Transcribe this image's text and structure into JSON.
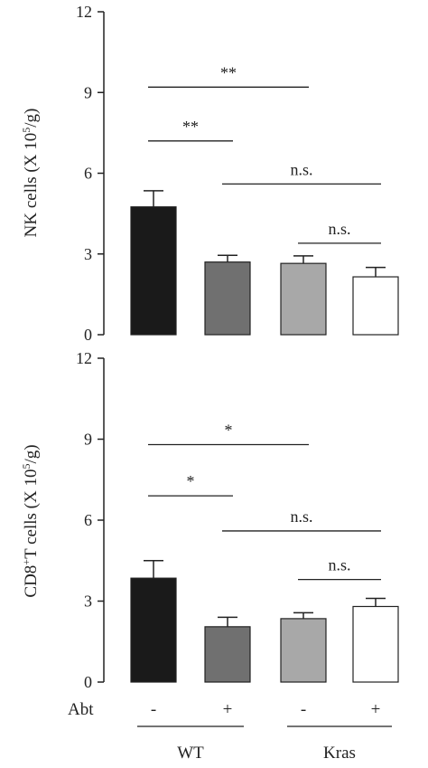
{
  "colors": {
    "axis": "#222222",
    "bars": [
      "#1a1a1a",
      "#707070",
      "#a8a8a8",
      "#ffffff"
    ],
    "bar_stroke": "#222222"
  },
  "chart_data": [
    {
      "type": "bar",
      "ylabel": "NK cells (X 10^5/g)",
      "ylabel_parts": {
        "prefix": "NK cells (X 10",
        "sup": "5",
        "suffix": "/g)"
      },
      "ylim": [
        0,
        12
      ],
      "yticks": [
        "0",
        "3",
        "6",
        "9",
        "12"
      ],
      "values": [
        4.75,
        2.7,
        2.65,
        2.15
      ],
      "errors": [
        0.6,
        0.25,
        0.28,
        0.35
      ],
      "significance": [
        {
          "from": 0,
          "to": 2,
          "label": "**",
          "level": 9.2
        },
        {
          "from": 0,
          "to": 1,
          "label": "**",
          "level": 7.2
        },
        {
          "from": 1,
          "to": 3,
          "label": "n.s.",
          "level": 5.6
        },
        {
          "from": 2,
          "to": 3,
          "label": "n.s.",
          "level": 3.4
        }
      ]
    },
    {
      "type": "bar",
      "ylabel": "CD8+T cells (X 10^5/g)",
      "ylabel_parts": {
        "prefix": "CD8",
        "sup1": "+",
        "mid": "T cells (X 10",
        "sup": "5",
        "suffix": "/g)"
      },
      "ylim": [
        0,
        12
      ],
      "yticks": [
        "0",
        "3",
        "6",
        "9",
        "12"
      ],
      "values": [
        3.85,
        2.05,
        2.35,
        2.8
      ],
      "errors": [
        0.65,
        0.35,
        0.22,
        0.3
      ],
      "significance": [
        {
          "from": 0,
          "to": 2,
          "label": "*",
          "level": 8.8
        },
        {
          "from": 0,
          "to": 1,
          "label": "*",
          "level": 6.9
        },
        {
          "from": 1,
          "to": 3,
          "label": "n.s.",
          "level": 5.6
        },
        {
          "from": 2,
          "to": 3,
          "label": "n.s.",
          "level": 3.8
        }
      ]
    }
  ],
  "x_axis": {
    "row_label": "Abt",
    "treatment": [
      "-",
      "+",
      "-",
      "+"
    ],
    "groups": [
      {
        "label": "WT",
        "from": 0,
        "to": 1
      },
      {
        "label": "Kras",
        "from": 2,
        "to": 3
      }
    ]
  }
}
